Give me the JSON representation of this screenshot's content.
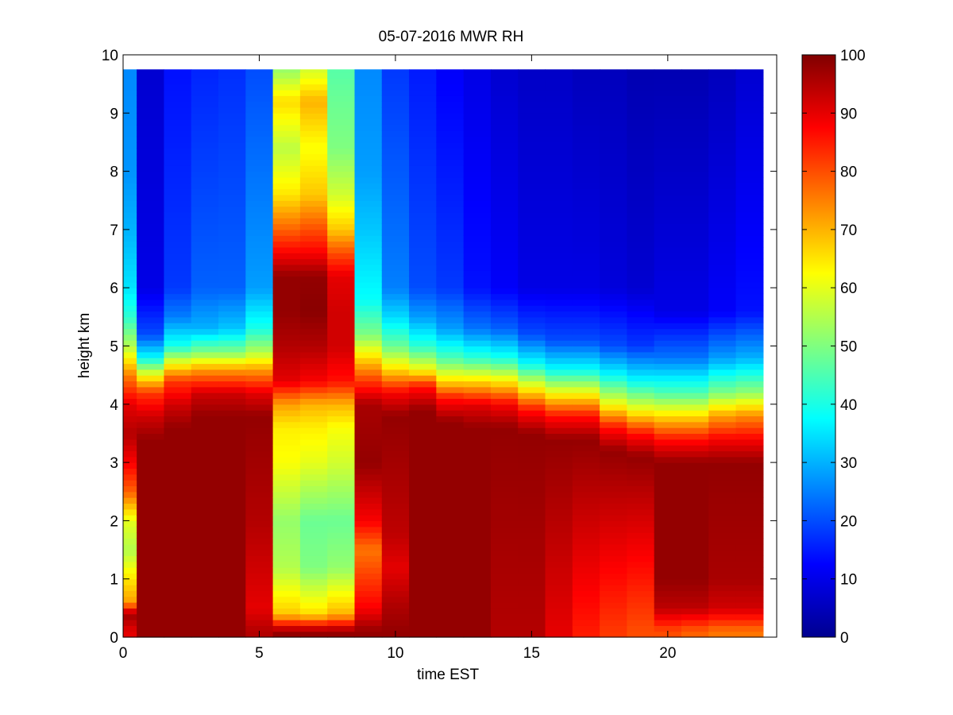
{
  "chart_data": {
    "type": "heatmap",
    "title": "05-07-2016 MWR RH",
    "xlabel": "time EST",
    "ylabel": "height km",
    "xlim": [
      0,
      24
    ],
    "ylim": [
      0,
      10
    ],
    "x_ticks": [
      0,
      5,
      10,
      15,
      20
    ],
    "y_ticks": [
      0,
      1,
      2,
      3,
      4,
      5,
      6,
      7,
      8,
      9,
      10
    ],
    "colorbar": {
      "colormap": "jet",
      "range": [
        0,
        100
      ],
      "ticks": [
        0,
        10,
        20,
        30,
        40,
        50,
        60,
        70,
        80,
        90,
        100
      ]
    },
    "x_bins": [
      0,
      1,
      2,
      3,
      4,
      5,
      6,
      7,
      8,
      9,
      10,
      11,
      12,
      13,
      14,
      15,
      16,
      17,
      18,
      19,
      20,
      21,
      22,
      23
    ],
    "top_height_km": 9.75,
    "relative_humidity": [
      {
        "time": 0,
        "profile": [
          [
            0.1,
            90
          ],
          [
            0.4,
            97
          ],
          [
            0.6,
            72
          ],
          [
            1.0,
            65
          ],
          [
            1.5,
            55
          ],
          [
            2.0,
            60
          ],
          [
            2.5,
            78
          ],
          [
            3.0,
            88
          ],
          [
            3.5,
            95
          ],
          [
            4.0,
            90
          ],
          [
            4.5,
            75
          ],
          [
            5.0,
            55
          ],
          [
            5.5,
            42
          ],
          [
            6.0,
            35
          ],
          [
            7.0,
            30
          ],
          [
            8.0,
            27
          ],
          [
            9.75,
            26
          ]
        ]
      },
      {
        "time": 1,
        "profile": [
          [
            0.1,
            98
          ],
          [
            3.4,
            98
          ],
          [
            3.8,
            92
          ],
          [
            4.2,
            82
          ],
          [
            4.5,
            62
          ],
          [
            4.8,
            38
          ],
          [
            5.2,
            20
          ],
          [
            6.0,
            10
          ],
          [
            9.75,
            8
          ]
        ]
      },
      {
        "time": 2,
        "profile": [
          [
            0.1,
            98
          ],
          [
            3.6,
            98
          ],
          [
            4.0,
            92
          ],
          [
            4.4,
            82
          ],
          [
            4.7,
            62
          ],
          [
            5.0,
            40
          ],
          [
            5.5,
            25
          ],
          [
            6.0,
            18
          ],
          [
            9.75,
            14
          ]
        ]
      },
      {
        "time": 3,
        "profile": [
          [
            0.1,
            98
          ],
          [
            3.8,
            98
          ],
          [
            4.2,
            92
          ],
          [
            4.6,
            72
          ],
          [
            4.9,
            50
          ],
          [
            5.3,
            30
          ],
          [
            6.0,
            22
          ],
          [
            9.75,
            16
          ]
        ]
      },
      {
        "time": 4,
        "profile": [
          [
            0.1,
            98
          ],
          [
            3.8,
            98
          ],
          [
            4.2,
            92
          ],
          [
            4.6,
            72
          ],
          [
            4.9,
            50
          ],
          [
            5.3,
            32
          ],
          [
            6.0,
            22
          ],
          [
            9.75,
            17
          ]
        ]
      },
      {
        "time": 5,
        "profile": [
          [
            0.1,
            95
          ],
          [
            0.5,
            90
          ],
          [
            2.0,
            95
          ],
          [
            3.8,
            98
          ],
          [
            4.2,
            90
          ],
          [
            4.6,
            72
          ],
          [
            4.9,
            55
          ],
          [
            5.3,
            40
          ],
          [
            6.0,
            28
          ],
          [
            9.75,
            20
          ]
        ]
      },
      {
        "time": 6,
        "profile": [
          [
            0.1,
            98
          ],
          [
            0.4,
            68
          ],
          [
            1.2,
            55
          ],
          [
            2.0,
            52
          ],
          [
            3.0,
            62
          ],
          [
            3.6,
            64
          ],
          [
            4.0,
            72
          ],
          [
            4.4,
            90
          ],
          [
            5.0,
            95
          ],
          [
            5.6,
            98
          ],
          [
            6.2,
            98
          ],
          [
            6.6,
            88
          ],
          [
            7.0,
            78
          ],
          [
            7.6,
            65
          ],
          [
            8.4,
            56
          ],
          [
            9.2,
            66
          ],
          [
            9.75,
            52
          ]
        ]
      },
      {
        "time": 7,
        "profile": [
          [
            0.1,
            98
          ],
          [
            0.4,
            66
          ],
          [
            1.2,
            50
          ],
          [
            2.0,
            48
          ],
          [
            3.0,
            60
          ],
          [
            3.6,
            64
          ],
          [
            4.0,
            70
          ],
          [
            4.4,
            88
          ],
          [
            5.0,
            95
          ],
          [
            5.6,
            99
          ],
          [
            6.2,
            98
          ],
          [
            6.6,
            88
          ],
          [
            7.0,
            80
          ],
          [
            7.6,
            68
          ],
          [
            8.4,
            62
          ],
          [
            9.2,
            70
          ],
          [
            9.75,
            58
          ]
        ]
      },
      {
        "time": 8,
        "profile": [
          [
            0.1,
            98
          ],
          [
            0.4,
            70
          ],
          [
            1.2,
            52
          ],
          [
            2.0,
            48
          ],
          [
            3.0,
            58
          ],
          [
            3.6,
            62
          ],
          [
            4.0,
            70
          ],
          [
            4.4,
            86
          ],
          [
            5.0,
            92
          ],
          [
            5.6,
            92
          ],
          [
            6.2,
            90
          ],
          [
            6.6,
            80
          ],
          [
            7.0,
            68
          ],
          [
            7.6,
            58
          ],
          [
            8.4,
            50
          ],
          [
            9.2,
            48
          ],
          [
            9.75,
            46
          ]
        ]
      },
      {
        "time": 9,
        "profile": [
          [
            0.1,
            98
          ],
          [
            0.5,
            88
          ],
          [
            1.0,
            82
          ],
          [
            1.5,
            76
          ],
          [
            2.0,
            88
          ],
          [
            3.0,
            98
          ],
          [
            4.0,
            96
          ],
          [
            4.4,
            82
          ],
          [
            4.8,
            66
          ],
          [
            5.2,
            50
          ],
          [
            5.8,
            38
          ],
          [
            7.0,
            32
          ],
          [
            8.0,
            28
          ],
          [
            9.75,
            26
          ]
        ]
      },
      {
        "time": 10,
        "profile": [
          [
            0.1,
            98
          ],
          [
            0.6,
            95
          ],
          [
            1.2,
            90
          ],
          [
            1.8,
            94
          ],
          [
            3.8,
            98
          ],
          [
            4.2,
            88
          ],
          [
            4.6,
            66
          ],
          [
            5.0,
            48
          ],
          [
            5.5,
            34
          ],
          [
            6.0,
            25
          ],
          [
            9.75,
            18
          ]
        ]
      },
      {
        "time": 11,
        "profile": [
          [
            0.1,
            98
          ],
          [
            3.9,
            98
          ],
          [
            4.3,
            86
          ],
          [
            4.6,
            62
          ],
          [
            5.0,
            42
          ],
          [
            5.5,
            28
          ],
          [
            6.0,
            20
          ],
          [
            9.75,
            15
          ]
        ]
      },
      {
        "time": 12,
        "profile": [
          [
            0.1,
            98
          ],
          [
            3.7,
            98
          ],
          [
            4.1,
            86
          ],
          [
            4.4,
            66
          ],
          [
            4.8,
            45
          ],
          [
            5.3,
            28
          ],
          [
            6.0,
            18
          ],
          [
            9.75,
            12
          ]
        ]
      },
      {
        "time": 13,
        "profile": [
          [
            0.1,
            98
          ],
          [
            3.6,
            98
          ],
          [
            4.0,
            90
          ],
          [
            4.4,
            66
          ],
          [
            4.8,
            42
          ],
          [
            5.3,
            24
          ],
          [
            6.0,
            14
          ],
          [
            9.75,
            10
          ]
        ]
      },
      {
        "time": 14,
        "profile": [
          [
            0.1,
            95
          ],
          [
            3.6,
            98
          ],
          [
            4.0,
            88
          ],
          [
            4.4,
            64
          ],
          [
            4.8,
            40
          ],
          [
            5.3,
            22
          ],
          [
            6.0,
            12
          ],
          [
            9.75,
            8
          ]
        ]
      },
      {
        "time": 15,
        "profile": [
          [
            0.1,
            95
          ],
          [
            3.5,
            98
          ],
          [
            3.9,
            86
          ],
          [
            4.3,
            62
          ],
          [
            4.7,
            38
          ],
          [
            5.2,
            20
          ],
          [
            6.0,
            10
          ],
          [
            9.75,
            7
          ]
        ]
      },
      {
        "time": 16,
        "profile": [
          [
            0.1,
            90
          ],
          [
            3.4,
            98
          ],
          [
            3.8,
            86
          ],
          [
            4.2,
            62
          ],
          [
            4.6,
            38
          ],
          [
            5.1,
            20
          ],
          [
            6.0,
            10
          ],
          [
            9.75,
            7
          ]
        ]
      },
      {
        "time": 17,
        "profile": [
          [
            0.1,
            85
          ],
          [
            3.4,
            98
          ],
          [
            3.8,
            86
          ],
          [
            4.2,
            62
          ],
          [
            4.6,
            38
          ],
          [
            5.1,
            20
          ],
          [
            6.0,
            10
          ],
          [
            9.75,
            6
          ]
        ]
      },
      {
        "time": 18,
        "profile": [
          [
            0.1,
            82
          ],
          [
            3.2,
            98
          ],
          [
            3.6,
            86
          ],
          [
            4.0,
            62
          ],
          [
            4.5,
            38
          ],
          [
            5.0,
            20
          ],
          [
            6.0,
            9
          ],
          [
            9.75,
            6
          ]
        ]
      },
      {
        "time": 19,
        "profile": [
          [
            0.1,
            80
          ],
          [
            3.1,
            98
          ],
          [
            3.5,
            86
          ],
          [
            3.9,
            62
          ],
          [
            4.4,
            38
          ],
          [
            5.0,
            18
          ],
          [
            6.0,
            8
          ],
          [
            9.75,
            5
          ]
        ]
      },
      {
        "time": 20,
        "profile": [
          [
            0.1,
            80
          ],
          [
            0.5,
            94
          ],
          [
            1.0,
            98
          ],
          [
            3.0,
            98
          ],
          [
            3.4,
            86
          ],
          [
            3.8,
            66
          ],
          [
            4.2,
            45
          ],
          [
            4.8,
            24
          ],
          [
            5.6,
            10
          ],
          [
            9.75,
            5
          ]
        ]
      },
      {
        "time": 21,
        "profile": [
          [
            0.1,
            78
          ],
          [
            0.5,
            94
          ],
          [
            1.0,
            98
          ],
          [
            3.0,
            98
          ],
          [
            3.4,
            86
          ],
          [
            3.8,
            66
          ],
          [
            4.2,
            45
          ],
          [
            4.8,
            24
          ],
          [
            5.6,
            10
          ],
          [
            9.75,
            5
          ]
        ]
      },
      {
        "time": 22,
        "profile": [
          [
            0.1,
            76
          ],
          [
            0.5,
            92
          ],
          [
            1.0,
            96
          ],
          [
            3.0,
            98
          ],
          [
            3.4,
            88
          ],
          [
            3.8,
            72
          ],
          [
            4.2,
            50
          ],
          [
            4.8,
            28
          ],
          [
            5.6,
            12
          ],
          [
            9.75,
            6
          ]
        ]
      },
      {
        "time": 23,
        "profile": [
          [
            0.1,
            76
          ],
          [
            0.5,
            92
          ],
          [
            1.0,
            96
          ],
          [
            3.0,
            98
          ],
          [
            3.4,
            88
          ],
          [
            3.8,
            74
          ],
          [
            4.2,
            52
          ],
          [
            4.8,
            30
          ],
          [
            5.6,
            14
          ],
          [
            9.75,
            8
          ]
        ]
      }
    ]
  }
}
